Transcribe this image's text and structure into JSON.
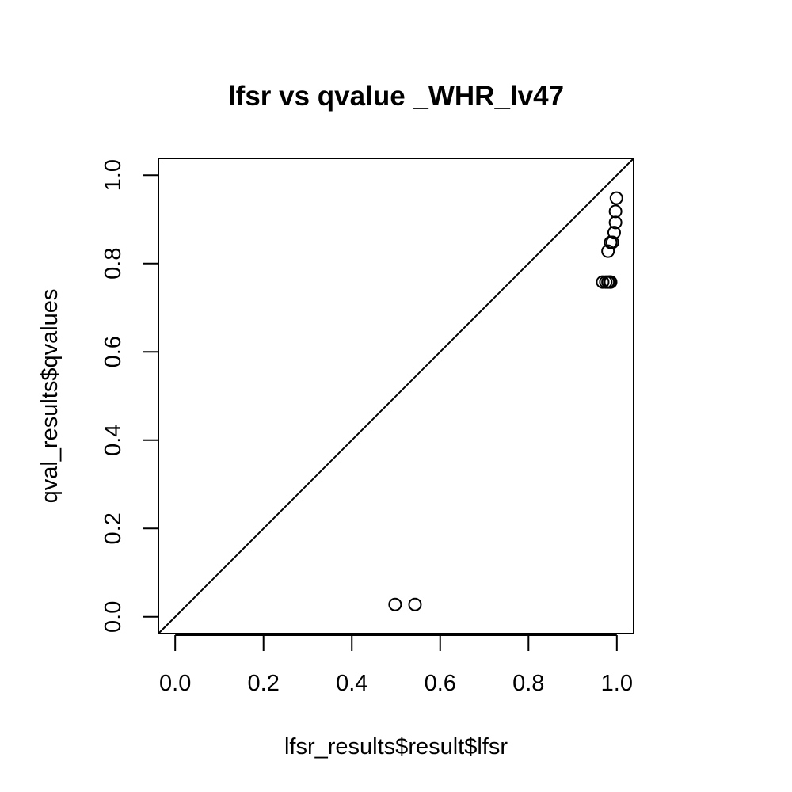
{
  "chart_data": {
    "type": "scatter",
    "title": "lfsr vs qvalue  _WHR_lv47",
    "xlabel": "lfsr_results$result$lfsr",
    "ylabel": "qval_results$qvalues",
    "xlim": [
      -0.038,
      1.038
    ],
    "ylim": [
      -0.038,
      1.038
    ],
    "xticks": [
      "0.0",
      "0.2",
      "0.4",
      "0.6",
      "0.8",
      "1.0"
    ],
    "yticks": [
      "0.0",
      "0.2",
      "0.4",
      "0.6",
      "0.8",
      "1.0"
    ],
    "grid": false,
    "reference_line": {
      "slope": 1,
      "intercept": 0
    },
    "points": [
      {
        "x": 0.498,
        "y": 0.028
      },
      {
        "x": 0.543,
        "y": 0.028
      },
      {
        "x": 0.968,
        "y": 0.758
      },
      {
        "x": 0.975,
        "y": 0.758
      },
      {
        "x": 0.98,
        "y": 0.758
      },
      {
        "x": 0.984,
        "y": 0.758
      },
      {
        "x": 0.986,
        "y": 0.758
      },
      {
        "x": 0.98,
        "y": 0.828
      },
      {
        "x": 0.986,
        "y": 0.848
      },
      {
        "x": 0.99,
        "y": 0.848
      },
      {
        "x": 0.994,
        "y": 0.87
      },
      {
        "x": 0.997,
        "y": 0.893
      },
      {
        "x": 0.997,
        "y": 0.918
      },
      {
        "x": 0.999,
        "y": 0.948
      }
    ]
  }
}
